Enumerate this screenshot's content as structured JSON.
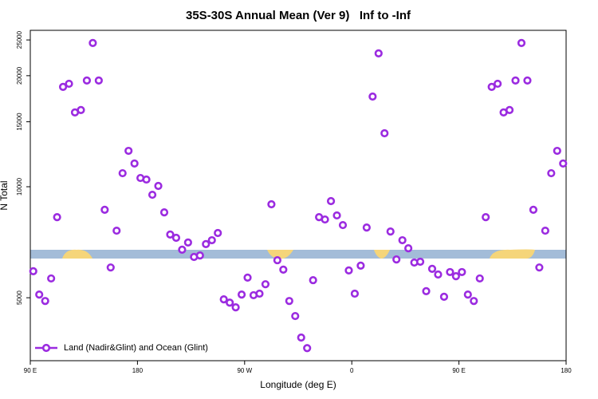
{
  "chart_data": {
    "type": "scatter",
    "title": "35S-30S Annual Mean (Ver 9)   Inf to -Inf",
    "xlabel": "Longitude (deg E)",
    "ylabel": "N Total",
    "xlim": [
      90,
      540
    ],
    "xticks": [
      {
        "value": 90,
        "label": "90 E"
      },
      180,
      {
        "value": 270,
        "label": "90 W"
      },
      {
        "value": 360,
        "label": "0"
      },
      {
        "value": 450,
        "label": "90 E"
      },
      {
        "value": 540,
        "label": "180"
      }
    ],
    "ylim": [
      3375,
      26550
    ],
    "yscale": "log",
    "yticks": [
      5000,
      10000,
      15000,
      20000,
      25000
    ],
    "legend": "lower left",
    "series": [
      {
        "name": "Land (Nadir&Glint) and Ocean (Glint)",
        "color": "#9b2be0",
        "x": [
          92.5,
          97.5,
          102.5,
          107.5,
          112.5,
          117.5,
          122.5,
          127.5,
          132.5,
          137.5,
          142.5,
          147.5,
          152.5,
          157.5,
          162.5,
          167.5,
          172.5,
          177.5,
          182.5,
          187.5,
          192.5,
          197.5,
          202.5,
          207.5,
          212.5,
          217.5,
          222.5,
          227.5,
          232.5,
          237.5,
          242.5,
          247.5,
          252.5,
          257.5,
          262.5,
          267.5,
          272.5,
          277.5,
          282.5,
          287.5,
          292.5,
          297.5,
          302.5,
          307.5,
          312.5,
          317.5,
          322.5,
          327.5,
          332.5,
          337.5,
          342.5,
          347.5,
          352.5,
          357.5,
          362.5,
          367.5,
          372.5,
          377.5,
          382.5,
          387.5,
          392.5,
          397.5,
          402.5,
          407.5,
          412.5,
          417.5,
          422.5,
          427.5,
          432.5,
          437.5,
          442.5,
          447.5,
          452.5,
          457.5,
          462.5,
          467.5,
          472.5,
          477.5,
          482.5,
          487.5,
          492.5,
          497.5,
          502.5,
          507.5,
          512.5,
          517.5,
          522.5,
          527.5,
          532.5,
          537.5
        ],
        "values": [
          5900,
          5100,
          4900,
          5640,
          8270,
          18650,
          19020,
          15900,
          16140,
          19410,
          24530,
          19410,
          8660,
          6040,
          7600,
          10880,
          12510,
          11560,
          10560,
          10460,
          9510,
          10050,
          8520,
          7420,
          7270,
          6750,
          7060,
          6450,
          6510,
          6990,
          7160,
          7490,
          4950,
          4850,
          4710,
          5100,
          5670,
          5080,
          5130,
          5440,
          8960,
          6320,
          5960,
          4900,
          4460,
          3900,
          3650,
          5580,
          8270,
          8150,
          9140,
          8360,
          7870,
          5930,
          5130,
          6110,
          7750,
          17560,
          22990,
          13960,
          7560,
          6350,
          7160,
          6810,
          6230,
          6260,
          5210,
          5990,
          5780,
          5030,
          5870,
          5720,
          5870,
          5100,
          4900,
          5640,
          8270,
          18650,
          19020,
          15900,
          16140,
          19410,
          24530,
          19410,
          8660,
          6040,
          7600,
          10880,
          12510,
          11560
        ]
      }
    ]
  }
}
